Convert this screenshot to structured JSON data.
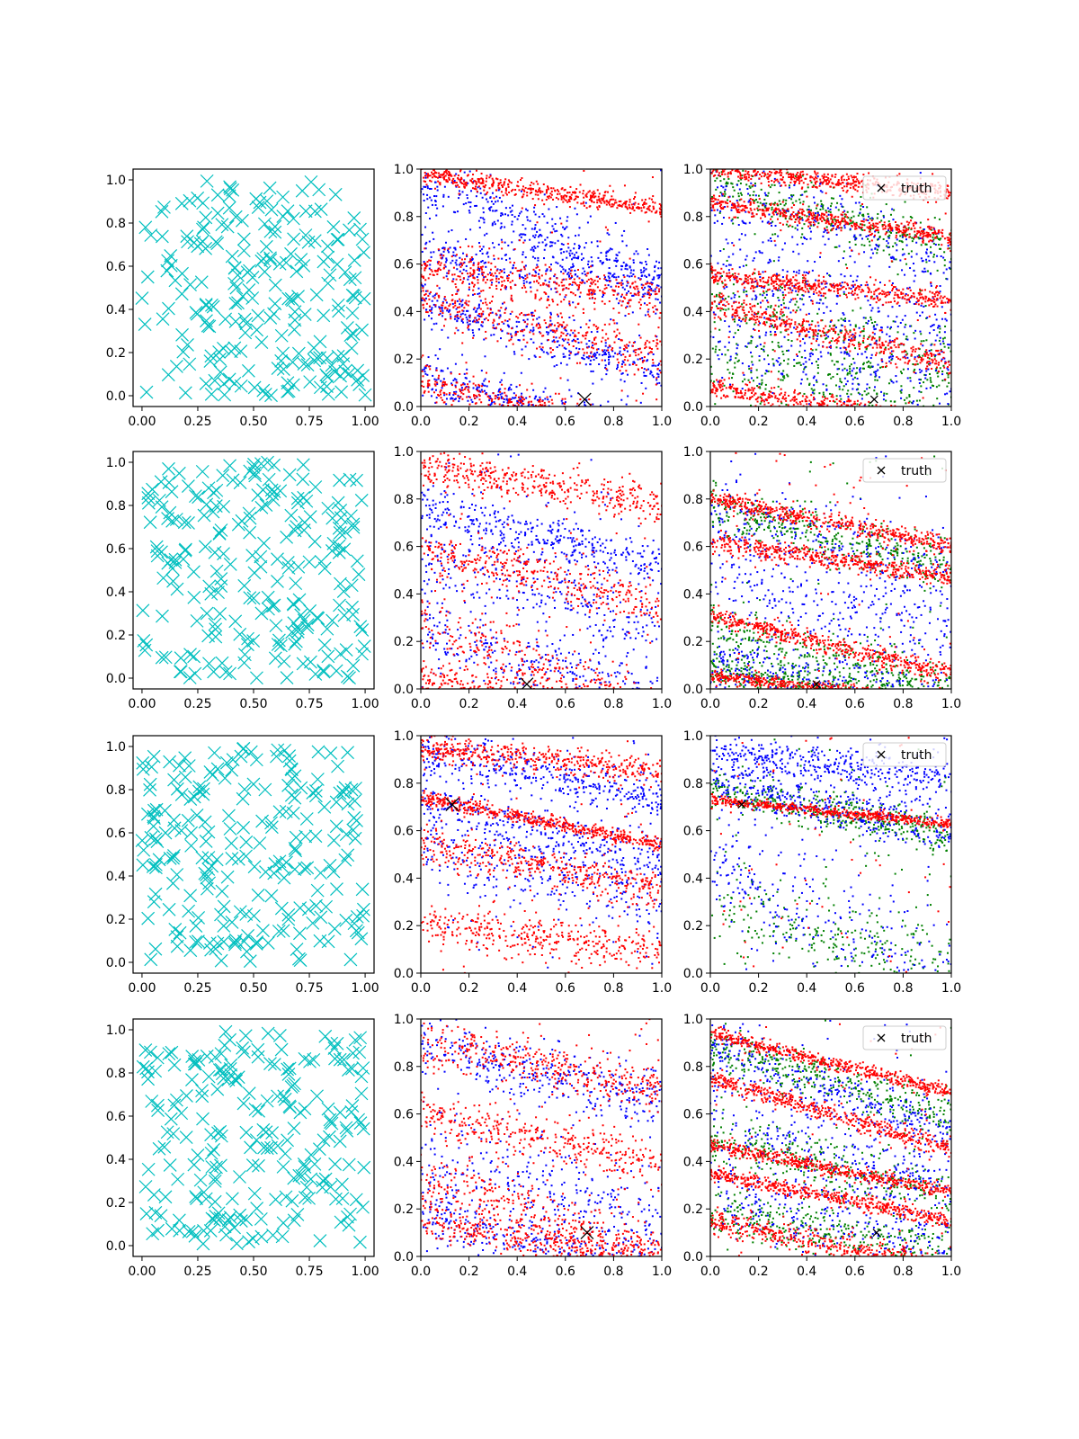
{
  "chart_data": [
    {
      "type": "scatter",
      "row": 0,
      "panel": "samples",
      "marker": "x",
      "series": [
        {
          "values_summary": "uniform samples",
          "color": "#00bfbf"
        }
      ],
      "ticks_x": [
        "0.00",
        "0.25",
        "0.50",
        "0.75",
        "1.00"
      ],
      "ticks_y": [
        "0.0",
        "0.2",
        "0.4",
        "0.6",
        "0.8",
        "1.0"
      ],
      "xlim": [
        -0.04,
        1.04
      ],
      "ylim": [
        -0.05,
        1.05
      ]
    },
    {
      "type": "scatter",
      "row": 0,
      "panel": "posterior-2",
      "series": [
        {
          "color": "#0000ff",
          "bands": [
            [
              0.95,
              -0.42,
              0.06
            ],
            [
              0.65,
              -0.15,
              0.06
            ],
            [
              0.44,
              -0.3,
              0.05
            ],
            [
              0.12,
              -0.25,
              0.05
            ]
          ]
        },
        {
          "color": "#ff0000",
          "bands": [
            [
              0.98,
              -0.15,
              0.02
            ],
            [
              0.46,
              -0.25,
              0.05
            ],
            [
              0.6,
              -0.15,
              0.04
            ],
            [
              0.1,
              -0.22,
              0.04
            ]
          ]
        }
      ],
      "truth": [
        0.68,
        0.03
      ],
      "ticks_x": [
        "0.0",
        "0.2",
        "0.4",
        "0.6",
        "0.8",
        "1.0"
      ],
      "ticks_y": [
        "0.0",
        "0.2",
        "0.4",
        "0.6",
        "0.8",
        "1.0"
      ],
      "xlim": [
        0,
        1
      ],
      "ylim": [
        0,
        1
      ]
    },
    {
      "type": "scatter",
      "row": 0,
      "panel": "posterior-3",
      "series": [
        {
          "color": "#008000",
          "bands": [
            [
              0.95,
              -0.3,
              0.06
            ],
            [
              0.45,
              -0.25,
              0.08
            ],
            [
              0.2,
              -0.2,
              0.08
            ]
          ]
        },
        {
          "color": "#0000ff",
          "bands": [
            [
              0.9,
              -0.3,
              0.08
            ],
            [
              0.6,
              -0.3,
              0.1
            ],
            [
              0.3,
              -0.2,
              0.1
            ]
          ]
        },
        {
          "color": "#ff0000",
          "bands": [
            [
              1.0,
              -0.1,
              0.02
            ],
            [
              0.86,
              -0.15,
              0.02
            ],
            [
              0.43,
              -0.25,
              0.03
            ],
            [
              0.08,
              -0.15,
              0.02
            ],
            [
              0.55,
              -0.1,
              0.02
            ]
          ]
        }
      ],
      "truth": [
        0.68,
        0.03
      ],
      "legend": {
        "label": "truth",
        "position": "upper right"
      },
      "ticks_x": [
        "0.0",
        "0.2",
        "0.4",
        "0.6",
        "0.8",
        "1.0"
      ],
      "ticks_y": [
        "0.0",
        "0.2",
        "0.4",
        "0.6",
        "0.8",
        "1.0"
      ],
      "xlim": [
        0,
        1
      ],
      "ylim": [
        0,
        1
      ]
    },
    {
      "type": "scatter",
      "row": 1,
      "panel": "samples",
      "marker": "x",
      "series": [
        {
          "values_summary": "uniform samples",
          "color": "#00bfbf"
        }
      ],
      "ticks_x": [
        "0.00",
        "0.25",
        "0.50",
        "0.75",
        "1.00"
      ],
      "ticks_y": [
        "0.0",
        "0.2",
        "0.4",
        "0.6",
        "0.8",
        "1.0"
      ],
      "xlim": [
        -0.04,
        1.04
      ],
      "ylim": [
        -0.05,
        1.05
      ]
    },
    {
      "type": "scatter",
      "row": 1,
      "panel": "posterior-2",
      "series": [
        {
          "color": "#0000ff",
          "bands": [
            [
              0.77,
              -0.25,
              0.05
            ],
            [
              0.55,
              -0.3,
              0.08
            ],
            [
              0.25,
              -0.3,
              0.07
            ]
          ]
        },
        {
          "color": "#ff0000",
          "bands": [
            [
              0.93,
              -0.15,
              0.04
            ],
            [
              0.6,
              -0.25,
              0.05
            ],
            [
              0.27,
              -0.35,
              0.06
            ],
            [
              0.05,
              -0.2,
              0.04
            ]
          ]
        }
      ],
      "truth": [
        0.44,
        0.02
      ],
      "ticks_x": [
        "0.0",
        "0.2",
        "0.4",
        "0.6",
        "0.8",
        "1.0"
      ],
      "ticks_y": [
        "0.0",
        "0.2",
        "0.4",
        "0.6",
        "0.8",
        "1.0"
      ],
      "xlim": [
        0,
        1
      ],
      "ylim": [
        0,
        1
      ]
    },
    {
      "type": "scatter",
      "row": 1,
      "panel": "posterior-3",
      "series": [
        {
          "color": "#008000",
          "bands": [
            [
              0.76,
              -0.25,
              0.05
            ],
            [
              0.25,
              -0.25,
              0.06
            ],
            [
              0.08,
              -0.15,
              0.04
            ]
          ]
        },
        {
          "color": "#0000ff",
          "bands": [
            [
              0.75,
              -0.25,
              0.08
            ],
            [
              0.45,
              -0.2,
              0.1
            ],
            [
              0.12,
              -0.2,
              0.06
            ]
          ]
        },
        {
          "color": "#ff0000",
          "bands": [
            [
              0.8,
              -0.2,
              0.02
            ],
            [
              0.62,
              -0.15,
              0.02
            ],
            [
              0.31,
              -0.25,
              0.02
            ],
            [
              0.05,
              -0.1,
              0.015
            ]
          ]
        }
      ],
      "truth": [
        0.44,
        0.02
      ],
      "legend": {
        "label": "truth",
        "position": "upper right"
      },
      "ticks_x": [
        "0.0",
        "0.2",
        "0.4",
        "0.6",
        "0.8",
        "1.0"
      ],
      "ticks_y": [
        "0.0",
        "0.2",
        "0.4",
        "0.6",
        "0.8",
        "1.0"
      ],
      "xlim": [
        0,
        1
      ],
      "ylim": [
        0,
        1
      ]
    },
    {
      "type": "scatter",
      "row": 2,
      "panel": "samples",
      "marker": "x",
      "series": [
        {
          "values_summary": "uniform samples",
          "color": "#00bfbf"
        }
      ],
      "ticks_x": [
        "0.00",
        "0.25",
        "0.50",
        "0.75",
        "1.00"
      ],
      "ticks_y": [
        "0.0",
        "0.2",
        "0.4",
        "0.6",
        "0.8",
        "1.0"
      ],
      "xlim": [
        -0.04,
        1.04
      ],
      "ylim": [
        -0.05,
        1.05
      ]
    },
    {
      "type": "scatter",
      "row": 2,
      "panel": "posterior-2",
      "series": [
        {
          "color": "#0000ff",
          "bands": [
            [
              0.93,
              -0.2,
              0.05
            ],
            [
              0.72,
              -0.25,
              0.06
            ],
            [
              0.5,
              -0.2,
              0.08
            ]
          ]
        },
        {
          "color": "#ff0000",
          "bands": [
            [
              0.74,
              -0.2,
              0.015
            ],
            [
              0.95,
              -0.1,
              0.03
            ],
            [
              0.55,
              -0.2,
              0.04
            ],
            [
              0.2,
              -0.1,
              0.05
            ]
          ]
        }
      ],
      "truth": [
        0.13,
        0.71
      ],
      "ticks_x": [
        "0.0",
        "0.2",
        "0.4",
        "0.6",
        "0.8",
        "1.0"
      ],
      "ticks_y": [
        "0.0",
        "0.2",
        "0.4",
        "0.6",
        "0.8",
        "1.0"
      ],
      "xlim": [
        0,
        1
      ],
      "ylim": [
        0,
        1
      ]
    },
    {
      "type": "scatter",
      "row": 2,
      "panel": "posterior-3",
      "series": [
        {
          "color": "#008000",
          "bands": [
            [
              0.78,
              -0.2,
              0.04
            ],
            [
              0.3,
              -0.3,
              0.1
            ]
          ]
        },
        {
          "color": "#0000ff",
          "bands": [
            [
              0.8,
              -0.2,
              0.05
            ],
            [
              0.92,
              -0.1,
              0.04
            ],
            [
              0.45,
              -0.5,
              0.1
            ]
          ]
        },
        {
          "color": "#ff0000",
          "bands": [
            [
              0.73,
              -0.1,
              0.01
            ]
          ]
        }
      ],
      "truth": [
        0.13,
        0.71
      ],
      "legend": {
        "label": "truth",
        "position": "upper right"
      },
      "ticks_x": [
        "0.0",
        "0.2",
        "0.4",
        "0.6",
        "0.8",
        "1.0"
      ],
      "ticks_y": [
        "0.0",
        "0.2",
        "0.4",
        "0.6",
        "0.8",
        "1.0"
      ],
      "xlim": [
        0,
        1
      ],
      "ylim": [
        0,
        1
      ]
    },
    {
      "type": "scatter",
      "row": 3,
      "panel": "samples",
      "marker": "x",
      "series": [
        {
          "values_summary": "uniform samples",
          "color": "#00bfbf"
        }
      ],
      "ticks_x": [
        "0.00",
        "0.25",
        "0.50",
        "0.75",
        "1.00"
      ],
      "ticks_y": [
        "0.0",
        "0.2",
        "0.4",
        "0.6",
        "0.8",
        "1.0"
      ],
      "xlim": [
        -0.04,
        1.04
      ],
      "ylim": [
        -0.05,
        1.05
      ]
    },
    {
      "type": "scatter",
      "row": 3,
      "panel": "posterior-2",
      "series": [
        {
          "color": "#0000ff",
          "bands": [
            [
              0.9,
              -0.25,
              0.06
            ],
            [
              0.45,
              -0.3,
              0.1
            ],
            [
              0.18,
              -0.25,
              0.06
            ]
          ]
        },
        {
          "color": "#ff0000",
          "bands": [
            [
              0.9,
              -0.2,
              0.05
            ],
            [
              0.35,
              -0.35,
              0.06
            ],
            [
              0.16,
              -0.2,
              0.04
            ],
            [
              0.6,
              -0.2,
              0.05
            ]
          ]
        }
      ],
      "truth": [
        0.69,
        0.1
      ],
      "ticks_x": [
        "0.0",
        "0.2",
        "0.4",
        "0.6",
        "0.8",
        "1.0"
      ],
      "ticks_y": [
        "0.0",
        "0.2",
        "0.4",
        "0.6",
        "0.8",
        "1.0"
      ],
      "xlim": [
        0,
        1
      ],
      "ylim": [
        0,
        1
      ]
    },
    {
      "type": "scatter",
      "row": 3,
      "panel": "posterior-3",
      "series": [
        {
          "color": "#008000",
          "bands": [
            [
              0.88,
              -0.3,
              0.05
            ],
            [
              0.5,
              -0.25,
              0.06
            ],
            [
              0.2,
              -0.2,
              0.06
            ]
          ]
        },
        {
          "color": "#0000ff",
          "bands": [
            [
              0.87,
              -0.35,
              0.06
            ],
            [
              0.55,
              -0.25,
              0.08
            ],
            [
              0.25,
              -0.2,
              0.08
            ]
          ]
        },
        {
          "color": "#ff0000",
          "bands": [
            [
              0.94,
              -0.25,
              0.015
            ],
            [
              0.75,
              -0.3,
              0.02
            ],
            [
              0.47,
              -0.2,
              0.015
            ],
            [
              0.35,
              -0.2,
              0.015
            ],
            [
              0.15,
              -0.2,
              0.03
            ]
          ]
        }
      ],
      "truth": [
        0.69,
        0.1
      ],
      "legend": {
        "label": "truth",
        "position": "upper right"
      },
      "ticks_x": [
        "0.0",
        "0.2",
        "0.4",
        "0.6",
        "0.8",
        "1.0"
      ],
      "ticks_y": [
        "0.0",
        "0.2",
        "0.4",
        "0.6",
        "0.8",
        "1.0"
      ],
      "xlim": [
        0,
        1
      ],
      "ylim": [
        0,
        1
      ]
    }
  ]
}
